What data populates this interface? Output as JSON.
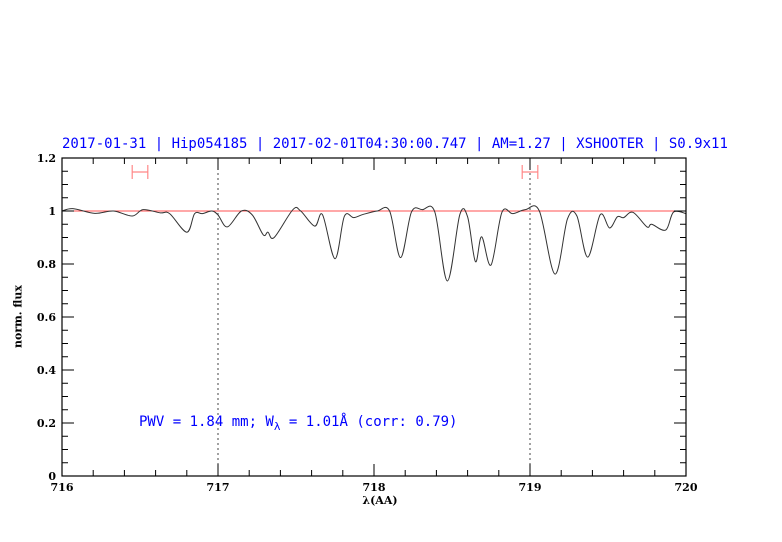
{
  "chart_data": {
    "type": "line",
    "title": "2017-01-31 | Hip054185 | 2017-02-01T04:30:00.747 | AM=1.27 | XSHOOTER | S0.9x11",
    "xlabel": "λ(AA)",
    "ylabel": "norm. flux",
    "xlim": [
      716,
      720
    ],
    "ylim": [
      0,
      1.2
    ],
    "xticks": [
      "716",
      "717",
      "718",
      "719",
      "720"
    ],
    "yticks": [
      "0",
      "0.2",
      "0.4",
      "0.6",
      "0.8",
      "1",
      "1.2"
    ],
    "x_minor_step": 0.2,
    "y_minor_step": 0.05,
    "grid": false,
    "annotation": {
      "prefix": "PWV = 1.84 mm; W",
      "sub": "λ",
      "suffix": " = 1.01Å (corr: 0.79)"
    },
    "reference_line": {
      "y": 1.0,
      "color": "#ff5050"
    },
    "vertical_dotted_lines": [
      717,
      719
    ],
    "marker_ranges": [
      [
        716.45,
        716.55
      ],
      [
        718.95,
        719.05
      ]
    ],
    "colors": {
      "text": "#0000ff",
      "spectrum": "#333333",
      "markers": "#ff8888"
    },
    "series": [
      {
        "x": [
          716.0,
          716.07,
          716.21,
          716.33,
          716.45,
          716.52,
          716.63,
          716.69,
          716.8,
          716.85,
          716.9,
          716.96,
          717.0,
          717.06,
          717.15,
          717.22,
          717.29,
          717.32,
          717.36,
          717.48,
          717.53,
          717.62,
          717.67,
          717.75,
          717.81,
          717.87,
          717.93,
          718.02,
          718.1,
          718.17,
          718.24,
          718.31,
          718.39,
          718.47,
          718.55,
          718.6,
          718.65,
          718.69,
          718.75,
          718.82,
          718.89,
          718.97,
          719.06,
          719.16,
          719.24,
          719.3,
          719.37,
          719.45,
          719.51,
          719.56,
          719.6,
          719.66,
          719.75,
          719.78,
          719.87,
          719.92,
          720.0
        ],
        "y": [
          1.0,
          1.009,
          0.991,
          1.0,
          0.981,
          1.005,
          0.993,
          0.99,
          0.92,
          0.99,
          0.99,
          1.0,
          0.985,
          0.94,
          1.0,
          0.985,
          0.91,
          0.92,
          0.9,
          1.005,
          1.0,
          0.943,
          0.986,
          0.82,
          0.98,
          0.975,
          0.987,
          1.0,
          1.0,
          0.824,
          0.996,
          1.005,
          0.996,
          0.736,
          0.986,
          0.978,
          0.809,
          0.903,
          0.796,
          0.995,
          0.99,
          1.005,
          1.0,
          0.762,
          0.97,
          0.982,
          0.826,
          0.986,
          0.936,
          0.978,
          0.975,
          0.995,
          0.94,
          0.95,
          0.928,
          0.996,
          0.99
        ]
      }
    ]
  }
}
